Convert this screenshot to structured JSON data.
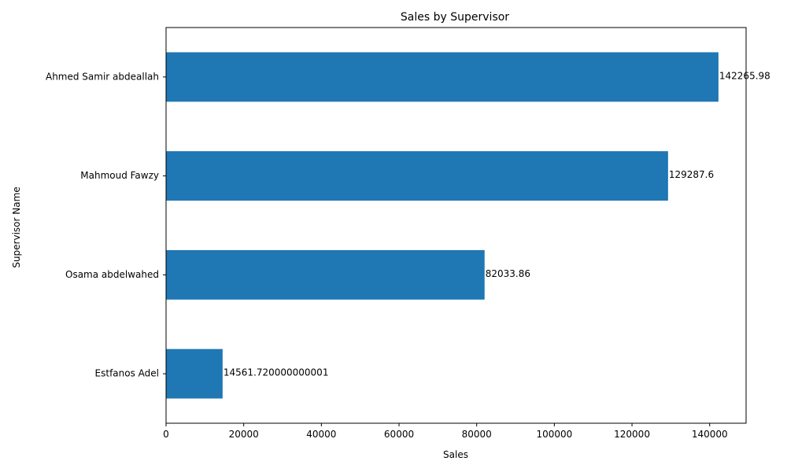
{
  "chart_data": {
    "type": "bar",
    "orientation": "horizontal",
    "title": "Sales by Supervisor",
    "xlabel": "Sales",
    "ylabel": "Supervisor Name",
    "categories": [
      "Estfanos Adel",
      "Osama abdelwahed",
      "Mahmoud Fawzy",
      "Ahmed Samir abdeallah"
    ],
    "values": [
      14561.720000000001,
      82033.86,
      129287.6,
      142265.98
    ],
    "data_labels": [
      "14561.720000000001",
      "82033.86",
      "129287.6",
      "142265.98"
    ],
    "xlim": [
      0,
      149379.28
    ],
    "xticks": [
      0,
      20000,
      40000,
      60000,
      80000,
      100000,
      120000,
      140000
    ],
    "xtick_labels": [
      "0",
      "20000",
      "40000",
      "60000",
      "80000",
      "100000",
      "120000",
      "140000"
    ],
    "grid": false,
    "legend": "none",
    "bar_color": "#1f77b4"
  }
}
